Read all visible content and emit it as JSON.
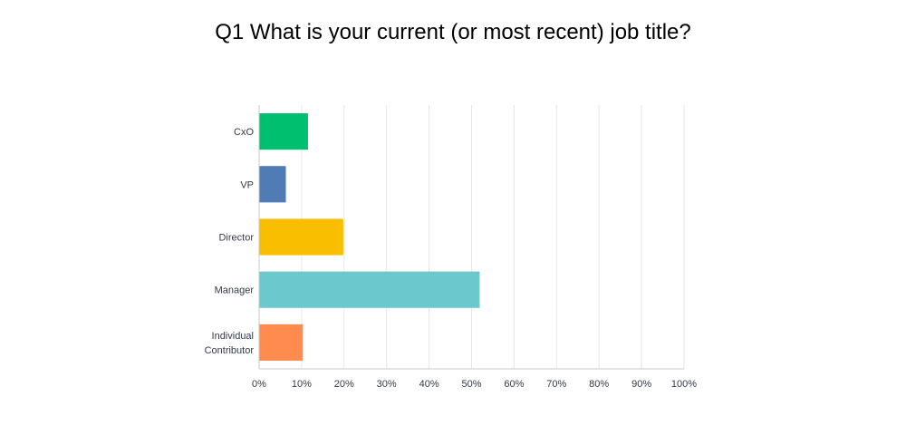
{
  "chart_data": {
    "type": "bar",
    "orientation": "horizontal",
    "title": "Q1 What is your current (or most recent) job title?",
    "categories": [
      "CxO",
      "VP",
      "Director",
      "Manager",
      "Individual Contributor"
    ],
    "category_lines": [
      [
        "CxO"
      ],
      [
        "VP"
      ],
      [
        "Director"
      ],
      [
        "Manager"
      ],
      [
        "Individual",
        "Contributor"
      ]
    ],
    "values": [
      11.5,
      6.3,
      19.8,
      51.9,
      10.3
    ],
    "colors": [
      "#00bf6f",
      "#507cb6",
      "#f9be00",
      "#6bc8cd",
      "#ff8b4f"
    ],
    "xlim": [
      0,
      100
    ],
    "x_ticks": [
      "0%",
      "10%",
      "20%",
      "30%",
      "40%",
      "50%",
      "60%",
      "70%",
      "80%",
      "90%",
      "100%"
    ],
    "grid": true,
    "legend": "none"
  }
}
